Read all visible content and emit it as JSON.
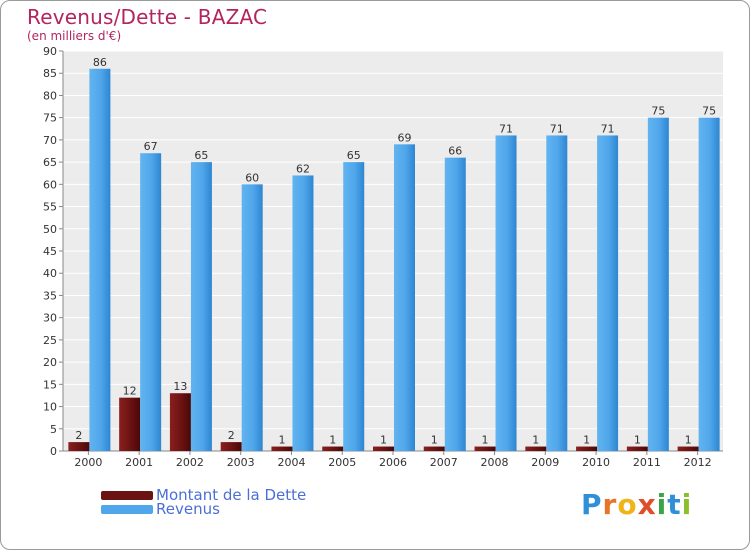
{
  "header": {
    "title": "Revenus/Dette - BAZAC",
    "subtitle": "(en milliers d'€)"
  },
  "legend": {
    "debt_label": "Montant de la Dette",
    "revenue_label": "Revenus"
  },
  "logo": {
    "text": "Proxiti"
  },
  "colors": {
    "debt": "#6b1212",
    "revenue": "#4fa6ea",
    "title": "#b3245f",
    "legend_text": "#4b6fd6"
  },
  "chart_data": {
    "type": "bar",
    "title": "Revenus/Dette - BAZAC",
    "subtitle": "(en milliers d'€)",
    "xlabel": "",
    "ylabel": "",
    "ylim": [
      0,
      90
    ],
    "ytick_step": 5,
    "grid": true,
    "legend_position": "bottom-left",
    "categories": [
      "2000",
      "2001",
      "2002",
      "2003",
      "2004",
      "2005",
      "2006",
      "2007",
      "2008",
      "2009",
      "2010",
      "2011",
      "2012"
    ],
    "series": [
      {
        "name": "Montant de la Dette",
        "values": [
          2,
          12,
          13,
          2,
          1,
          1,
          1,
          1,
          1,
          1,
          1,
          1,
          1
        ]
      },
      {
        "name": "Revenus",
        "values": [
          86,
          67,
          65,
          60,
          62,
          65,
          69,
          66,
          71,
          71,
          71,
          75,
          75
        ]
      }
    ]
  }
}
